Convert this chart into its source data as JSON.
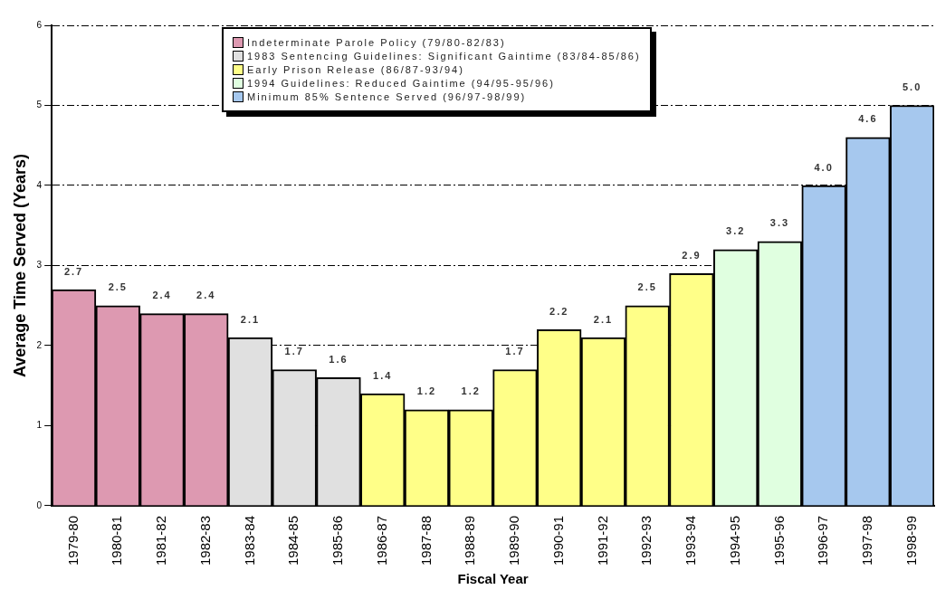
{
  "chart_data": {
    "type": "bar",
    "xlabel": "Fiscal Year",
    "ylabel": "Average Time Served (Years)",
    "categories": [
      "1979-80",
      "1980-81",
      "1981-82",
      "1982-83",
      "1983-84",
      "1984-85",
      "1985-86",
      "1986-87",
      "1987-88",
      "1988-89",
      "1989-90",
      "1990-91",
      "1991-92",
      "1992-93",
      "1993-94",
      "1994-95",
      "1995-96",
      "1996-97",
      "1997-98",
      "1998-99"
    ],
    "series": [
      {
        "name": "Indeterminate Parole Policy (79/80-82/83)",
        "color": "#dd99b1",
        "values": [
          2.7,
          2.5,
          2.4,
          2.4,
          null,
          null,
          null,
          null,
          null,
          null,
          null,
          null,
          null,
          null,
          null,
          null,
          null,
          null,
          null,
          null
        ],
        "value_labels": [
          "2.7",
          "2.5",
          "2.4",
          "2.4",
          null,
          null,
          null,
          null,
          null,
          null,
          null,
          null,
          null,
          null,
          null,
          null,
          null,
          null,
          null,
          null
        ]
      },
      {
        "name": "1983 Sentencing Guidelines: Significant Gaintime (83/84-85/86)",
        "color": "#e0e0e0",
        "values": [
          null,
          null,
          null,
          null,
          2.1,
          1.7,
          1.6,
          null,
          null,
          null,
          null,
          null,
          null,
          null,
          null,
          null,
          null,
          null,
          null,
          null
        ],
        "value_labels": [
          null,
          null,
          null,
          null,
          "2.1",
          "1.7",
          "1.6",
          null,
          null,
          null,
          null,
          null,
          null,
          null,
          null,
          null,
          null,
          null,
          null,
          null
        ]
      },
      {
        "name": "Early Prison Release (86/87-93/94)",
        "color": "#ffff88",
        "values": [
          null,
          null,
          null,
          null,
          null,
          null,
          null,
          1.4,
          1.2,
          1.2,
          1.7,
          2.2,
          2.1,
          2.5,
          2.9,
          null,
          null,
          null,
          null,
          null
        ],
        "value_labels": [
          null,
          null,
          null,
          null,
          null,
          null,
          null,
          "1.4",
          "1.2",
          "1.2",
          "1.7",
          "2.2",
          "2.1",
          "2.5",
          "2.9",
          null,
          null,
          null,
          null,
          null
        ]
      },
      {
        "name": "1994 Guidelines: Reduced Gaintime (94/95-95/96)",
        "color": "#e0ffe0",
        "values": [
          null,
          null,
          null,
          null,
          null,
          null,
          null,
          null,
          null,
          null,
          null,
          null,
          null,
          null,
          null,
          3.2,
          3.3,
          null,
          null,
          null
        ],
        "value_labels": [
          null,
          null,
          null,
          null,
          null,
          null,
          null,
          null,
          null,
          null,
          null,
          null,
          null,
          null,
          null,
          "3.2",
          "3.3",
          null,
          null,
          null
        ]
      },
      {
        "name": "Minimum 85% Sentence Served (96/97-98/99)",
        "color": "#a6c8ee",
        "values": [
          null,
          null,
          null,
          null,
          null,
          null,
          null,
          null,
          null,
          null,
          null,
          null,
          null,
          null,
          null,
          null,
          null,
          4.0,
          4.6,
          5.0
        ],
        "value_labels": [
          null,
          null,
          null,
          null,
          null,
          null,
          null,
          null,
          null,
          null,
          null,
          null,
          null,
          null,
          null,
          null,
          null,
          "4.0",
          "4.6",
          "5.0"
        ]
      }
    ],
    "ylim": [
      0,
      6
    ],
    "yticks": [
      0,
      1,
      2,
      3,
      4,
      5,
      6
    ],
    "grid": "y",
    "legend": "top"
  }
}
